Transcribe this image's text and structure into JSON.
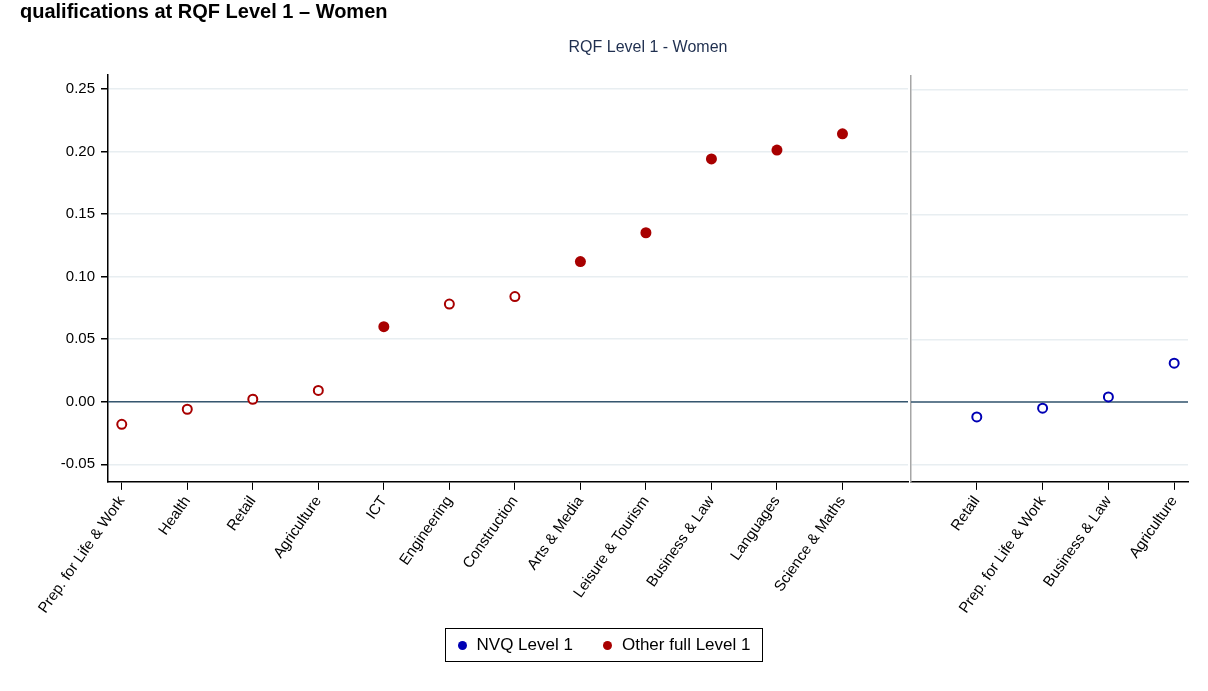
{
  "chart_data": [
    {
      "type": "scatter",
      "title": "qualifications at RQF Level 1 – Women",
      "subtitle": "RQF Level 1 - Women",
      "categories": [
        "Prep. for Life & Work",
        "Health",
        "Retail",
        "Agriculture",
        "ICT",
        "Engineering",
        "Construction",
        "Arts & Media",
        "Leisure & Tourism",
        "Business & Law",
        "Languages",
        "Science & Maths"
      ],
      "ylim": [
        -0.064,
        0.261
      ],
      "yticks": [
        -0.05,
        {
          "value": 0,
          "label": "0.00"
        },
        0.05,
        {
          "value": 0.1,
          "label": "0.10"
        },
        0.15,
        {
          "value": 0.2,
          "label": "0.20"
        },
        0.25
      ],
      "series": [
        {
          "name": "Other full Level 1",
          "color": "#a80000",
          "marker": "circle",
          "x": [
            "ICT",
            "Arts & Media",
            "Leisure & Tourism",
            "Business & Law",
            "Languages",
            "Science & Maths"
          ],
          "values": [
            0.06,
            0.112,
            0.135,
            0.194,
            0.201,
            0.214
          ]
        },
        {
          "color": "#a80000",
          "marker": "circle-open",
          "x": [
            "Prep. for Life & Work",
            "Health",
            "Retail",
            "Agriculture",
            "Engineering",
            "Construction"
          ],
          "values": [
            -0.018,
            -0.006,
            0.002,
            0.009,
            0.078,
            0.084
          ]
        }
      ],
      "ref_lines": [
        {
          "axis": "y",
          "value": 0,
          "color": "#36566f"
        }
      ],
      "grid": "y",
      "legend": "bottom"
    },
    {
      "type": "scatter",
      "categories": [
        "Retail",
        "Prep. for Life & Work",
        "Business & Law",
        "Agriculture"
      ],
      "ylim": [
        -0.064,
        0.261
      ],
      "yticks": [
        -0.05,
        0,
        0.05,
        0.1,
        0.15,
        0.2,
        0.25
      ],
      "tick_labels": "x",
      "series": [
        {
          "name": "NVQ Level 1",
          "color": "#0000b4",
          "marker": "circle-open",
          "values": [
            -0.012,
            -0.005,
            0.004,
            0.031
          ]
        }
      ],
      "ref_lines": [
        {
          "axis": "y",
          "value": 0,
          "color": "#36566f"
        }
      ],
      "grid": "y"
    }
  ]
}
